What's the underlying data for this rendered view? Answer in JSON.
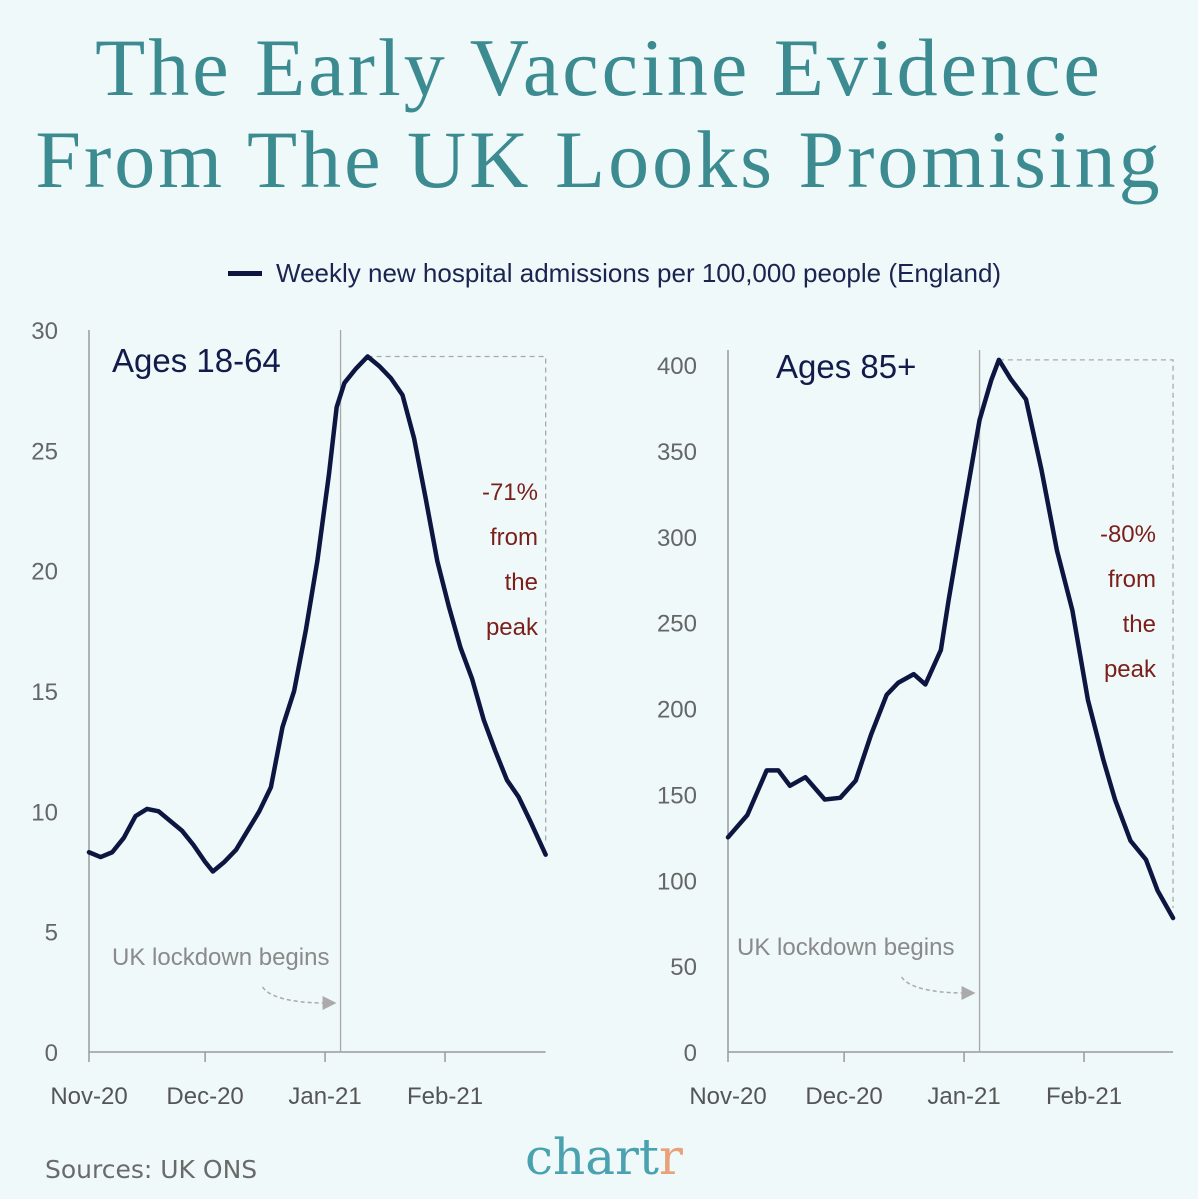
{
  "title_line1": "The Early Vaccine Evidence",
  "title_line2": "From The UK Looks Promising",
  "legend": "Weekly new hospital admissions per 100,000 people (England)",
  "source": "Sources: UK ONS",
  "logo": "chartr",
  "colors": {
    "line": "#0d1640",
    "title": "#3b8b91",
    "annotation": "#7a1f1a",
    "muted": "#8a8a8a",
    "background": "#eff9f9"
  },
  "chart_data": [
    {
      "type": "line",
      "title": "Ages 18-64",
      "ylim": [
        0,
        30
      ],
      "yticks": [
        0,
        5,
        10,
        15,
        20,
        25,
        30
      ],
      "xticks": [
        {
          "date": "2020-11-01",
          "label": "Nov-20"
        },
        {
          "date": "2020-12-01",
          "label": "Dec-20"
        },
        {
          "date": "2021-01-01",
          "label": "Jan-21"
        },
        {
          "date": "2021-02-01",
          "label": "Feb-21"
        }
      ],
      "xrange": [
        "2020-11-01",
        "2021-02-27"
      ],
      "grid": false,
      "lockdown": {
        "date": "2021-01-05",
        "label": "UK lockdown begins"
      },
      "peak_annotation": [
        "-71%",
        "from",
        "the",
        "peak"
      ],
      "series": [
        {
          "name": "Weekly new hospital admissions per 100,000 people (England)",
          "points": [
            [
              "2020-11-01",
              8.3
            ],
            [
              "2020-11-04",
              8.1
            ],
            [
              "2020-11-07",
              8.3
            ],
            [
              "2020-11-10",
              8.9
            ],
            [
              "2020-11-13",
              9.8
            ],
            [
              "2020-11-16",
              10.1
            ],
            [
              "2020-11-19",
              10.0
            ],
            [
              "2020-11-22",
              9.6
            ],
            [
              "2020-11-25",
              9.2
            ],
            [
              "2020-11-28",
              8.6
            ],
            [
              "2020-12-01",
              7.9
            ],
            [
              "2020-12-03",
              7.5
            ],
            [
              "2020-12-06",
              7.9
            ],
            [
              "2020-12-09",
              8.4
            ],
            [
              "2020-12-12",
              9.2
            ],
            [
              "2020-12-15",
              10.0
            ],
            [
              "2020-12-18",
              11.0
            ],
            [
              "2020-12-21",
              13.5
            ],
            [
              "2020-12-24",
              15.0
            ],
            [
              "2020-12-27",
              17.5
            ],
            [
              "2020-12-30",
              20.4
            ],
            [
              "2021-01-02",
              24.0
            ],
            [
              "2021-01-04",
              26.8
            ],
            [
              "2021-01-06",
              27.8
            ],
            [
              "2021-01-09",
              28.4
            ],
            [
              "2021-01-12",
              28.9
            ],
            [
              "2021-01-15",
              28.5
            ],
            [
              "2021-01-18",
              28.0
            ],
            [
              "2021-01-21",
              27.3
            ],
            [
              "2021-01-24",
              25.5
            ],
            [
              "2021-01-27",
              23.0
            ],
            [
              "2021-01-30",
              20.4
            ],
            [
              "2021-02-02",
              18.5
            ],
            [
              "2021-02-05",
              16.8
            ],
            [
              "2021-02-08",
              15.5
            ],
            [
              "2021-02-11",
              13.8
            ],
            [
              "2021-02-14",
              12.5
            ],
            [
              "2021-02-17",
              11.3
            ],
            [
              "2021-02-20",
              10.6
            ],
            [
              "2021-02-23",
              9.6
            ],
            [
              "2021-02-27",
              8.2
            ]
          ]
        }
      ]
    },
    {
      "type": "line",
      "title": "Ages 85+",
      "ylim": [
        0,
        400
      ],
      "yticks": [
        0,
        50,
        100,
        150,
        200,
        250,
        300,
        350,
        400
      ],
      "xticks": [
        {
          "date": "2020-11-01",
          "label": "Nov-20"
        },
        {
          "date": "2020-12-01",
          "label": "Dec-20"
        },
        {
          "date": "2021-01-01",
          "label": "Jan-21"
        },
        {
          "date": "2021-02-01",
          "label": "Feb-21"
        }
      ],
      "xrange": [
        "2020-11-01",
        "2021-02-24"
      ],
      "grid": false,
      "lockdown": {
        "date": "2021-01-05",
        "label": "UK lockdown begins"
      },
      "peak_annotation": [
        "-80%",
        "from",
        "the",
        "peak"
      ],
      "series": [
        {
          "name": "Weekly new hospital admissions per 100,000 people (England)",
          "points": [
            [
              "2020-11-01",
              125
            ],
            [
              "2020-11-06",
              138
            ],
            [
              "2020-11-11",
              164
            ],
            [
              "2020-11-14",
              164
            ],
            [
              "2020-11-17",
              155
            ],
            [
              "2020-11-21",
              160
            ],
            [
              "2020-11-26",
              147
            ],
            [
              "2020-11-30",
              148
            ],
            [
              "2020-12-04",
              158
            ],
            [
              "2020-12-08",
              185
            ],
            [
              "2020-12-12",
              208
            ],
            [
              "2020-12-15",
              215
            ],
            [
              "2020-12-19",
              220
            ],
            [
              "2020-12-22",
              214
            ],
            [
              "2020-12-26",
              234
            ],
            [
              "2020-12-28",
              263
            ],
            [
              "2021-01-01",
              316
            ],
            [
              "2021-01-05",
              368
            ],
            [
              "2021-01-08",
              391
            ],
            [
              "2021-01-10",
              403
            ],
            [
              "2021-01-13",
              392
            ],
            [
              "2021-01-17",
              380
            ],
            [
              "2021-01-21",
              339
            ],
            [
              "2021-01-25",
              292
            ],
            [
              "2021-01-29",
              257
            ],
            [
              "2021-02-02",
              205
            ],
            [
              "2021-02-06",
              170
            ],
            [
              "2021-02-09",
              147
            ],
            [
              "2021-02-13",
              123
            ],
            [
              "2021-02-17",
              112
            ],
            [
              "2021-02-20",
              94
            ],
            [
              "2021-02-24",
              78
            ]
          ]
        }
      ]
    }
  ]
}
